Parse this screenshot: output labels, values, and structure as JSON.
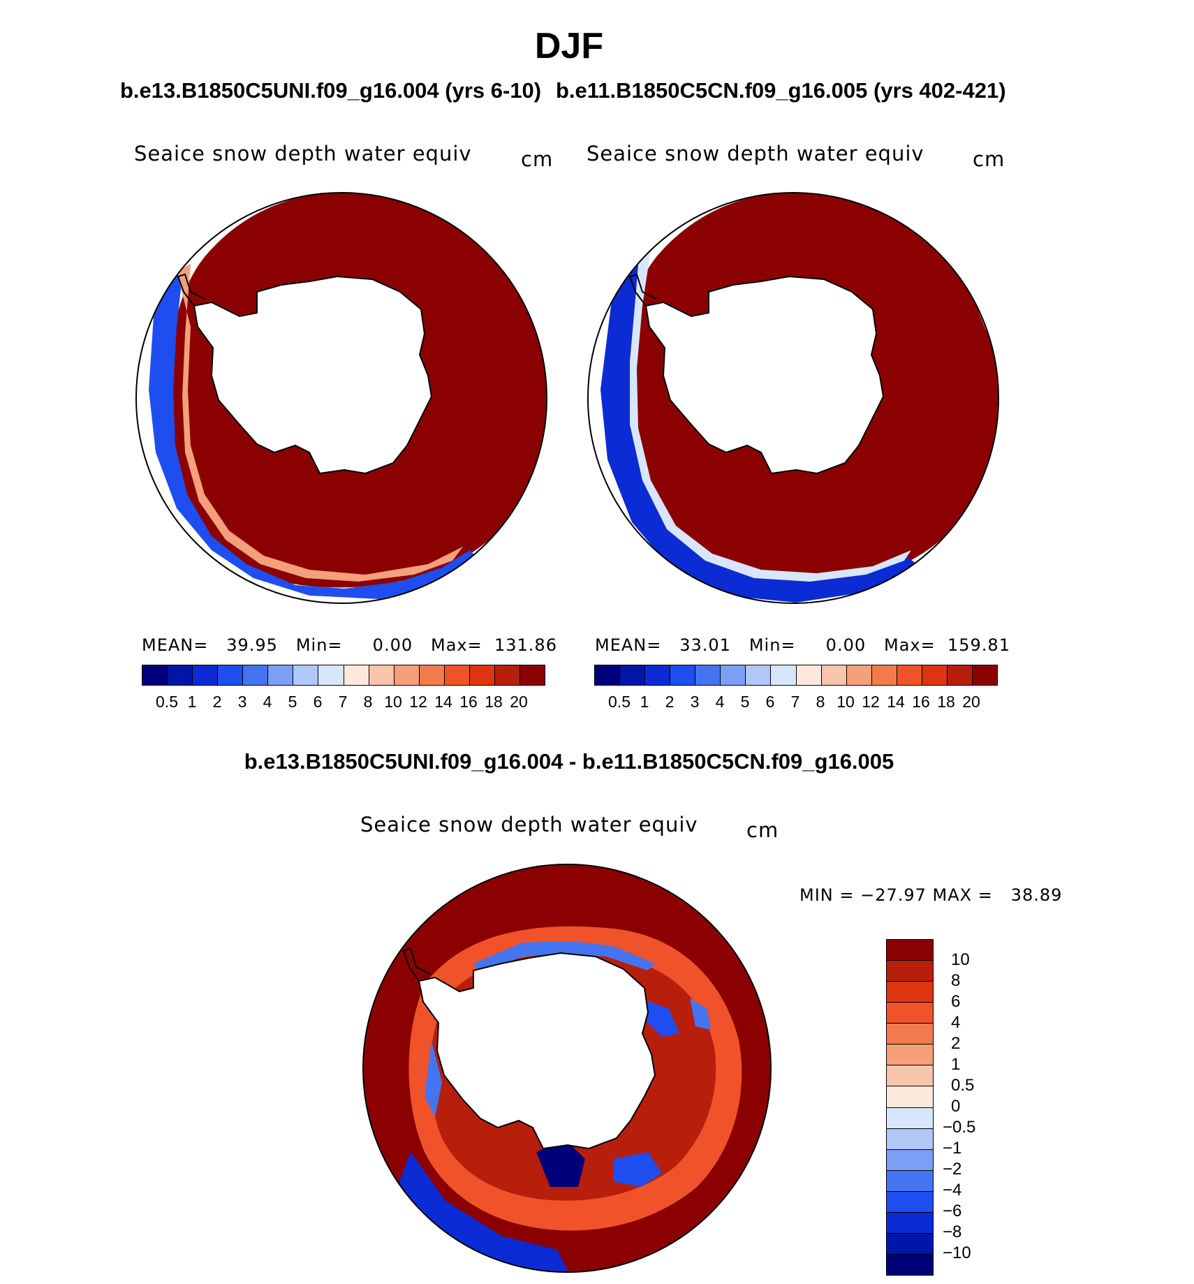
{
  "title": "DJF",
  "panels": [
    {
      "case": "b.e13.B1850C5UNI.f09_g16.004 (yrs 6-10)",
      "variable": "Seaice snow depth water equiv",
      "units": "cm",
      "stats": "MEAN=   39.95   Min=     0.00   Max=  131.86"
    },
    {
      "case": "b.e11.B1850C5CN.f09_g16.005 (yrs 402-421)",
      "variable": "Seaice snow depth water equiv",
      "units": "cm",
      "stats": "MEAN=   33.01   Min=     0.00   Max=  159.81"
    }
  ],
  "diff_panel": {
    "case": "b.e13.B1850C5UNI.f09_g16.004 - b.e11.B1850C5CN.f09_g16.005",
    "variable": "Seaice snow depth water equiv",
    "units": "cm",
    "stats": "MIN = −27.97 MAX =   38.89"
  },
  "colorbar_top": {
    "labels": [
      "0.5",
      "1",
      "2",
      "3",
      "4",
      "5",
      "6",
      "7",
      "8",
      "10",
      "12",
      "14",
      "16",
      "18",
      "20"
    ],
    "colors": [
      "#00007a",
      "#0016a8",
      "#0b2bd4",
      "#1f4ef0",
      "#4474f0",
      "#7b9ff5",
      "#b0c8f8",
      "#d8e6fb",
      "#fde9dc",
      "#f8c4ab",
      "#f4a07a",
      "#f27b4e",
      "#f0532a",
      "#dd3512",
      "#b81e0c",
      "#8b0000"
    ]
  },
  "colorbar_diff": {
    "labels": [
      "10",
      "8",
      "6",
      "4",
      "2",
      "1",
      "0.5",
      "0",
      "−0.5",
      "−1",
      "−2",
      "−4",
      "−6",
      "−8",
      "−10"
    ],
    "colors": [
      "#8b0000",
      "#b81e0c",
      "#dd3512",
      "#f0532a",
      "#f27b4e",
      "#f4a07a",
      "#f8c4ab",
      "#fde9dc",
      "#d8e6fb",
      "#b0c8f8",
      "#7b9ff5",
      "#4474f0",
      "#1f4ef0",
      "#0b2bd4",
      "#0016a8",
      "#00007a"
    ]
  },
  "map_colors": {
    "thick_snow": "#8b0000",
    "edge_red": "#dd3512",
    "edge_orange": "#f4a07a",
    "edge_blue": "#1f4ef0",
    "edge_navy": "#0016a8",
    "edge_light": "#b0c8f8"
  }
}
